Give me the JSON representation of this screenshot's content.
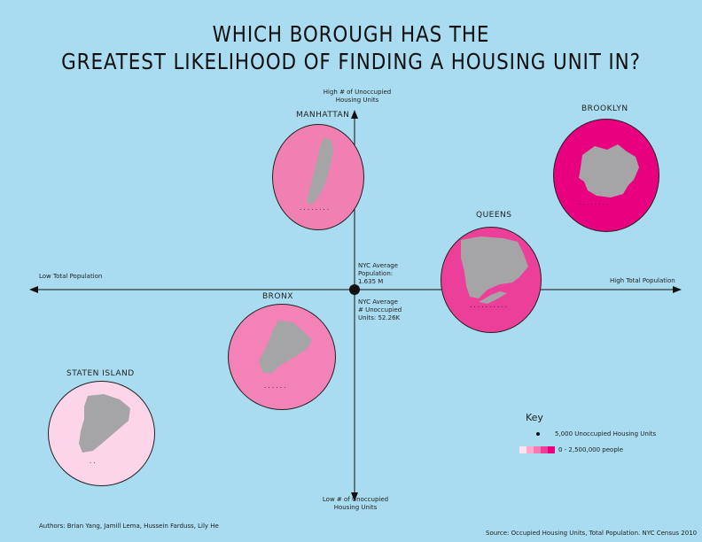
{
  "title": {
    "line1": "WHICH BOROUGH HAS THE",
    "line2": "GREATEST LIKELIHOOD OF FINDING A HOUSING UNIT IN?"
  },
  "axes": {
    "top": "High # of Unoccupied\nHousing Units",
    "bottom": "Low # of Unoccupied\nHousing Units",
    "left": "Low Total Population",
    "right": "High Total Population"
  },
  "center": {
    "avg_population": "NYC Average\nPopulation:\n1.635 M",
    "avg_unoccupied": "NYC Average\n# Unoccupied\nUnits: 52.26K"
  },
  "boroughs": [
    {
      "name": "MANHATTAN",
      "color": "#f07fb2",
      "dots": "........"
    },
    {
      "name": "BROOKLYN",
      "color": "#e8007f",
      "dots": "........"
    },
    {
      "name": "QUEENS",
      "color": "#ec3f9a",
      "dots": ".........."
    },
    {
      "name": "BRONX",
      "color": "#f383b6",
      "dots": "......"
    },
    {
      "name": "STATEN ISLAND",
      "color": "#fcd6e8",
      "dots": ".."
    }
  ],
  "key": {
    "title": "Key",
    "dot_label": "5,000 Unoccupied Housing Units",
    "scale_label": "0 - 2,500,000 people",
    "scale_colors": [
      "#fde3ef",
      "#f9a9cd",
      "#f27bb1",
      "#ec3f9a",
      "#e8007f"
    ]
  },
  "footer": {
    "authors": "Authors: Brian Yang, Jamill Lema, Hussein Farduss, Lily He",
    "source": "Source: Occupied Housing Units, Total Population. NYC Census 2010"
  },
  "colors": {
    "background": "#a9dcf0",
    "landmass": "#a5a5a8"
  }
}
